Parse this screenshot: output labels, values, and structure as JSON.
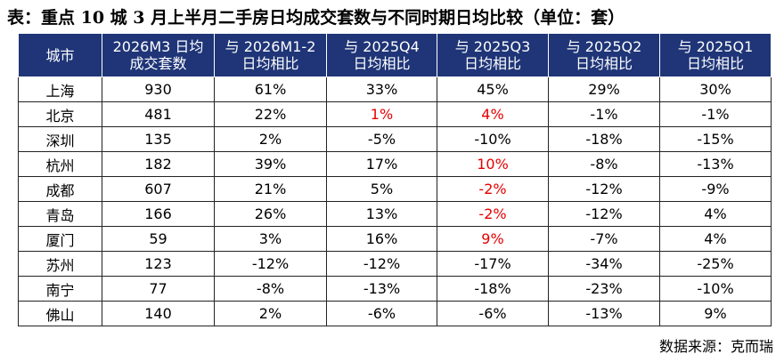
{
  "title": "表：重点 10 城 3 月上半月二手房日均成交套数与不同时期日均比较（单位：套）",
  "table": {
    "headers": [
      {
        "line1": "城市",
        "line2": ""
      },
      {
        "line1": "2026M3 日均",
        "line2": "成交套数"
      },
      {
        "line1": "与 2026M1-2",
        "line2": "日均相比"
      },
      {
        "line1": "与 2025Q4",
        "line2": "日均相比"
      },
      {
        "line1": "与 2025Q3",
        "line2": "日均相比"
      },
      {
        "line1": "与 2025Q2",
        "line2": "日均相比"
      },
      {
        "line1": "与 2025Q1",
        "line2": "日均相比"
      }
    ],
    "highlight_color": "#e60000",
    "rows": [
      {
        "cells": [
          "上海",
          "930",
          "61%",
          "33%",
          "45%",
          "29%",
          "30%"
        ],
        "red": []
      },
      {
        "cells": [
          "北京",
          "481",
          "22%",
          "1%",
          "4%",
          "-1%",
          "-1%"
        ],
        "red": [
          3,
          4
        ]
      },
      {
        "cells": [
          "深圳",
          "135",
          "2%",
          "-5%",
          "-10%",
          "-18%",
          "-15%"
        ],
        "red": []
      },
      {
        "cells": [
          "杭州",
          "182",
          "39%",
          "17%",
          "10%",
          "-8%",
          "-13%"
        ],
        "red": [
          4
        ]
      },
      {
        "cells": [
          "成都",
          "607",
          "21%",
          "5%",
          "-2%",
          "-12%",
          "-9%"
        ],
        "red": [
          4
        ]
      },
      {
        "cells": [
          "青岛",
          "166",
          "26%",
          "13%",
          "-2%",
          "-12%",
          "4%"
        ],
        "red": [
          4
        ]
      },
      {
        "cells": [
          "厦门",
          "59",
          "3%",
          "16%",
          "9%",
          "-7%",
          "4%"
        ],
        "red": [
          4
        ]
      },
      {
        "cells": [
          "苏州",
          "123",
          "-12%",
          "-12%",
          "-17%",
          "-34%",
          "-25%"
        ],
        "red": []
      },
      {
        "cells": [
          "南宁",
          "77",
          "-8%",
          "-13%",
          "-18%",
          "-23%",
          "-10%"
        ],
        "red": []
      },
      {
        "cells": [
          "佛山",
          "140",
          "2%",
          "-6%",
          "-6%",
          "-13%",
          "9%"
        ],
        "red": []
      }
    ]
  },
  "source": "数据来源：克而瑞"
}
